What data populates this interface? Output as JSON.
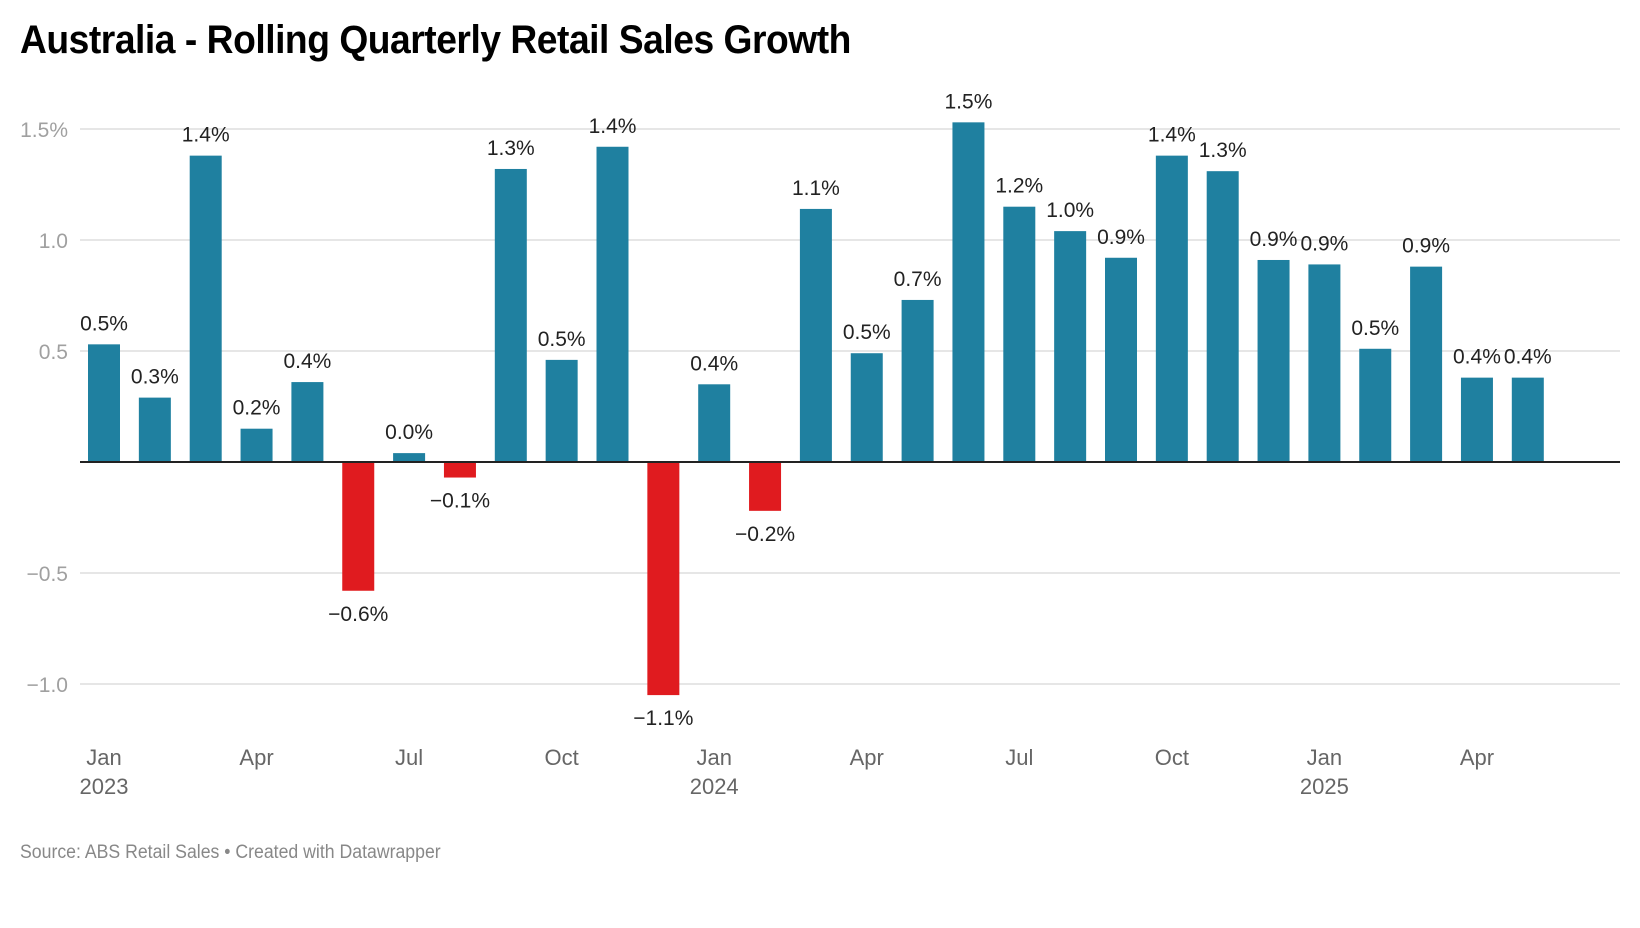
{
  "title": "Australia - Rolling Quarterly Retail Sales Growth",
  "source": "Source: ABS Retail Sales • Created with Datawrapper",
  "colors": {
    "positive": "#1f80a0",
    "negative": "#e01b1f",
    "grid": "#e6e6e6",
    "axis": "#222222"
  },
  "chart_data": {
    "type": "bar",
    "title": "Australia - Rolling Quarterly Retail Sales Growth",
    "xlabel": "",
    "ylabel": "",
    "ylim": [
      -1.1,
      1.55
    ],
    "grid": true,
    "y_ticks": [
      {
        "value": 1.5,
        "label": "1.5%"
      },
      {
        "value": 1.0,
        "label": "1.0"
      },
      {
        "value": 0.5,
        "label": "0.5"
      },
      {
        "value": -0.5,
        "label": "−0.5"
      },
      {
        "value": -1.0,
        "label": "−1.0"
      }
    ],
    "x_ticks": [
      {
        "index": 0,
        "label": "Jan",
        "year": "2023"
      },
      {
        "index": 3,
        "label": "Apr",
        "year": ""
      },
      {
        "index": 6,
        "label": "Jul",
        "year": ""
      },
      {
        "index": 9,
        "label": "Oct",
        "year": ""
      },
      {
        "index": 12,
        "label": "Jan",
        "year": "2024"
      },
      {
        "index": 15,
        "label": "Apr",
        "year": ""
      },
      {
        "index": 18,
        "label": "Jul",
        "year": ""
      },
      {
        "index": 21,
        "label": "Oct",
        "year": ""
      },
      {
        "index": 24,
        "label": "Jan",
        "year": "2025"
      },
      {
        "index": 27,
        "label": "Apr",
        "year": ""
      }
    ],
    "categories": [
      "2023-01",
      "2023-02",
      "2023-03",
      "2023-04",
      "2023-05",
      "2023-06",
      "2023-07",
      "2023-08",
      "2023-09",
      "2023-10",
      "2023-11",
      "2023-12",
      "2024-01",
      "2024-02",
      "2024-03",
      "2024-04",
      "2024-05",
      "2024-06",
      "2024-07",
      "2024-08",
      "2024-09",
      "2024-10",
      "2024-11",
      "2024-12",
      "2025-01",
      "2025-02",
      "2025-03",
      "2025-04",
      "2025-05"
    ],
    "values": [
      0.53,
      0.29,
      1.38,
      0.15,
      0.36,
      -0.58,
      0.04,
      -0.07,
      1.32,
      0.46,
      1.42,
      -1.05,
      0.35,
      -0.22,
      1.14,
      0.49,
      0.73,
      1.53,
      1.15,
      1.04,
      0.92,
      1.38,
      1.31,
      0.91,
      0.89,
      0.51,
      0.88,
      0.38,
      0.38
    ],
    "labels": [
      "0.5%",
      "0.3%",
      "1.4%",
      "0.2%",
      "0.4%",
      "−0.6%",
      "0.0%",
      "−0.1%",
      "1.3%",
      "0.5%",
      "1.4%",
      "−1.1%",
      "0.4%",
      "−0.2%",
      "1.1%",
      "0.5%",
      "0.7%",
      "1.5%",
      "1.2%",
      "1.0%",
      "0.9%",
      "1.4%",
      "1.3%",
      "0.9%",
      "0.9%",
      "0.5%",
      "0.9%",
      "0.4%",
      "0.4%"
    ]
  }
}
